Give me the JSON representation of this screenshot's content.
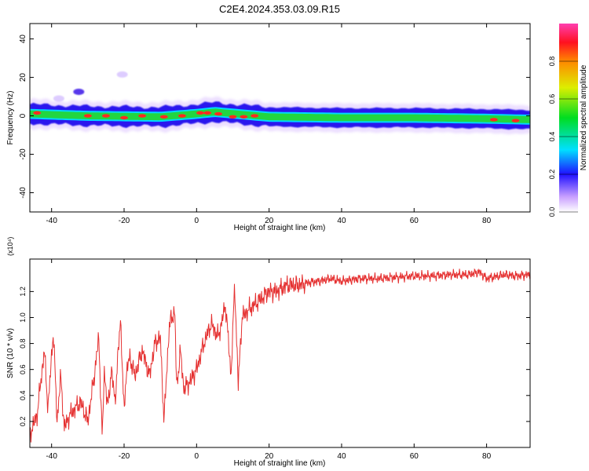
{
  "title": "C2E4.2024.353.03.09.R15",
  "chart_data": [
    {
      "type": "heatmap",
      "xlabel": "Height of straight line (km)",
      "ylabel": "Frequency (Hz)",
      "xlim": [
        -46,
        92
      ],
      "ylim": [
        -50,
        48
      ],
      "xticks": [
        -40,
        -20,
        0,
        20,
        40,
        60,
        80
      ],
      "yticks": [
        -40,
        -20,
        0,
        20,
        40
      ],
      "colorbar": {
        "label": "Normalized spectral amplitude",
        "range": [
          0,
          1
        ],
        "ticks": [
          "0.0",
          "0.2",
          "0.4",
          "0.6",
          "0.8"
        ]
      },
      "band": {
        "center_hz": [
          {
            "x": -46,
            "y": 1
          },
          {
            "x": -30,
            "y": 0
          },
          {
            "x": -10,
            "y": -0.5
          },
          {
            "x": 0,
            "y": 1
          },
          {
            "x": 5,
            "y": 2
          },
          {
            "x": 20,
            "y": -0.5
          },
          {
            "x": 40,
            "y": -1
          },
          {
            "x": 60,
            "y": -1
          },
          {
            "x": 80,
            "y": -1.5
          },
          {
            "x": 92,
            "y": -2
          }
        ],
        "core_halfwidth_hz": 1.8,
        "outer_halfwidth_hz": 5
      },
      "blobs": [
        {
          "x": -32.5,
          "y": 12.5,
          "level": 0.25
        },
        {
          "x": -38,
          "y": 9,
          "level": 0.18
        },
        {
          "x": -20.5,
          "y": 21.5,
          "level": 0.05
        }
      ],
      "peaks": [
        {
          "x": -44,
          "y": 1.5
        },
        {
          "x": -30,
          "y": 0
        },
        {
          "x": -25,
          "y": 0
        },
        {
          "x": -20,
          "y": -1
        },
        {
          "x": -15,
          "y": 0
        },
        {
          "x": -9,
          "y": -0.5
        },
        {
          "x": -4,
          "y": 0
        },
        {
          "x": 1,
          "y": 1.5
        },
        {
          "x": 3,
          "y": 1.5
        },
        {
          "x": 6,
          "y": 1
        },
        {
          "x": 10,
          "y": -0.5
        },
        {
          "x": 13,
          "y": -0.5
        },
        {
          "x": 16,
          "y": 0
        },
        {
          "x": 82,
          "y": -2
        },
        {
          "x": 88,
          "y": -2.5
        }
      ]
    },
    {
      "type": "line",
      "xlabel": "Height of straight line (km)",
      "ylabel": "SNR (10 * v/v)",
      "y_multiplier": "(x10⁴)",
      "xlim": [
        -46,
        92
      ],
      "ylim": [
        0,
        1.45
      ],
      "xticks": [
        -40,
        -20,
        0,
        20,
        40,
        60,
        80
      ],
      "yticks": [
        "0.2",
        "0.4",
        "0.6",
        "0.8",
        "1.0",
        "1.2"
      ],
      "line_color": "#e53030",
      "series": [
        {
          "x": [
            -46,
            -44,
            -42,
            -41,
            -39.5,
            -38.5,
            -37.5,
            -36.5,
            -35,
            -33.5,
            -32,
            -30,
            -28,
            -27,
            -26,
            -25.5,
            -24.5,
            -23.5,
            -22.5,
            -21,
            -20,
            -19.5,
            -18.5,
            -17,
            -15,
            -13,
            -11.5,
            -10,
            -9,
            -7.5,
            -6,
            -5.5,
            -4.5,
            -3.5,
            -2,
            0,
            2,
            4,
            6,
            8,
            9.5,
            10.5,
            11.5,
            12.5,
            14,
            16,
            18,
            20,
            22,
            25,
            28,
            31,
            34,
            37,
            40,
            45,
            50,
            55,
            60,
            65,
            70,
            75,
            78,
            80,
            85,
            88,
            92
          ],
          "y": [
            0.1,
            0.25,
            0.75,
            0.3,
            0.9,
            0.2,
            0.55,
            0.15,
            0.25,
            0.3,
            0.35,
            0.2,
            0.6,
            0.85,
            0.05,
            0.6,
            0.3,
            0.6,
            0.35,
            1.0,
            0.25,
            0.55,
            0.7,
            0.55,
            0.75,
            0.55,
            0.8,
            0.85,
            0.2,
            0.95,
            1.05,
            0.45,
            0.75,
            0.45,
            0.5,
            0.6,
            0.8,
            0.95,
            0.85,
            1.1,
            0.55,
            1.25,
            0.48,
            1.0,
            1.05,
            1.1,
            1.15,
            1.2,
            1.2,
            1.25,
            1.25,
            1.27,
            1.28,
            1.3,
            1.28,
            1.3,
            1.3,
            1.31,
            1.32,
            1.32,
            1.33,
            1.33,
            1.35,
            1.3,
            1.33,
            1.32,
            1.33
          ]
        }
      ]
    }
  ]
}
